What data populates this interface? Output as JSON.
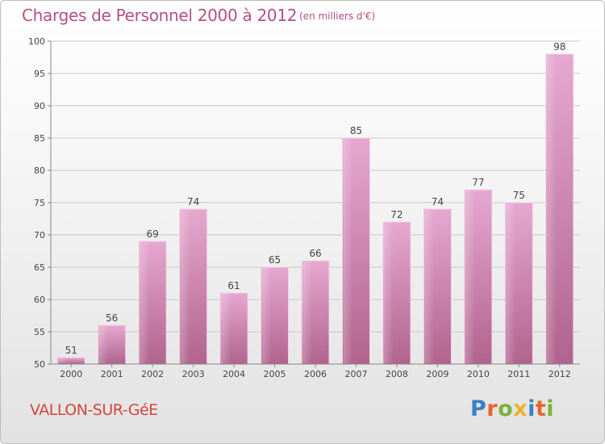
{
  "header": {
    "title": "Charges de Personnel 2000 à 2012",
    "subtitle": "(en milliers d'€)"
  },
  "footer": {
    "commune": "VALLON-SUR-GéE",
    "logo": "Proxiti"
  },
  "colors": {
    "title": "#b44f87",
    "bar_top": "#e6a8d0",
    "bar_bottom": "#b0638d",
    "commune": "#d0463e",
    "logo_letters": [
      "#3a7fc4",
      "#e8622c",
      "#7bb23a",
      "#e8b22c",
      "#3a7fc4",
      "#e8622c",
      "#7bb23a"
    ]
  },
  "chart_data": {
    "type": "bar",
    "title": "Charges de Personnel 2000 à 2012",
    "subtitle": "(en milliers d'€)",
    "categories": [
      "2000",
      "2001",
      "2002",
      "2003",
      "2004",
      "2005",
      "2006",
      "2007",
      "2008",
      "2009",
      "2010",
      "2011",
      "2012"
    ],
    "values": [
      51,
      56,
      69,
      74,
      61,
      65,
      66,
      85,
      72,
      74,
      77,
      75,
      98
    ],
    "ylim": [
      50,
      100
    ],
    "yticks": [
      50,
      55,
      60,
      65,
      70,
      75,
      80,
      85,
      90,
      95,
      100
    ],
    "grid": true,
    "data_labels": true
  }
}
